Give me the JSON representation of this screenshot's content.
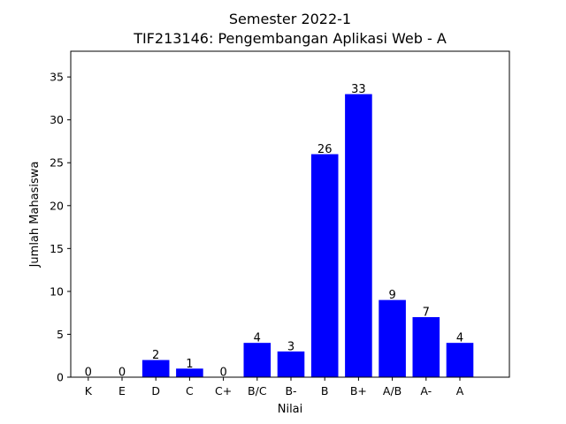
{
  "chart_data": {
    "type": "bar",
    "title": "Semester 2022-1",
    "subtitle": "TIF213146: Pengembangan Aplikasi Web - A",
    "xlabel": "Nilai",
    "ylabel": "Jumlah Mahasiswa",
    "categories": [
      "K",
      "E",
      "D",
      "C",
      "C+",
      "B/C",
      "B-",
      "B",
      "B+",
      "A/B",
      "A-",
      "A"
    ],
    "values": [
      0,
      0,
      2,
      1,
      0,
      4,
      3,
      26,
      33,
      9,
      7,
      4
    ],
    "ylim": [
      0,
      38
    ],
    "yticks": [
      0,
      5,
      10,
      15,
      20,
      25,
      30,
      35
    ],
    "bar_color": "#0000ff",
    "grid": false,
    "legend": "none"
  }
}
